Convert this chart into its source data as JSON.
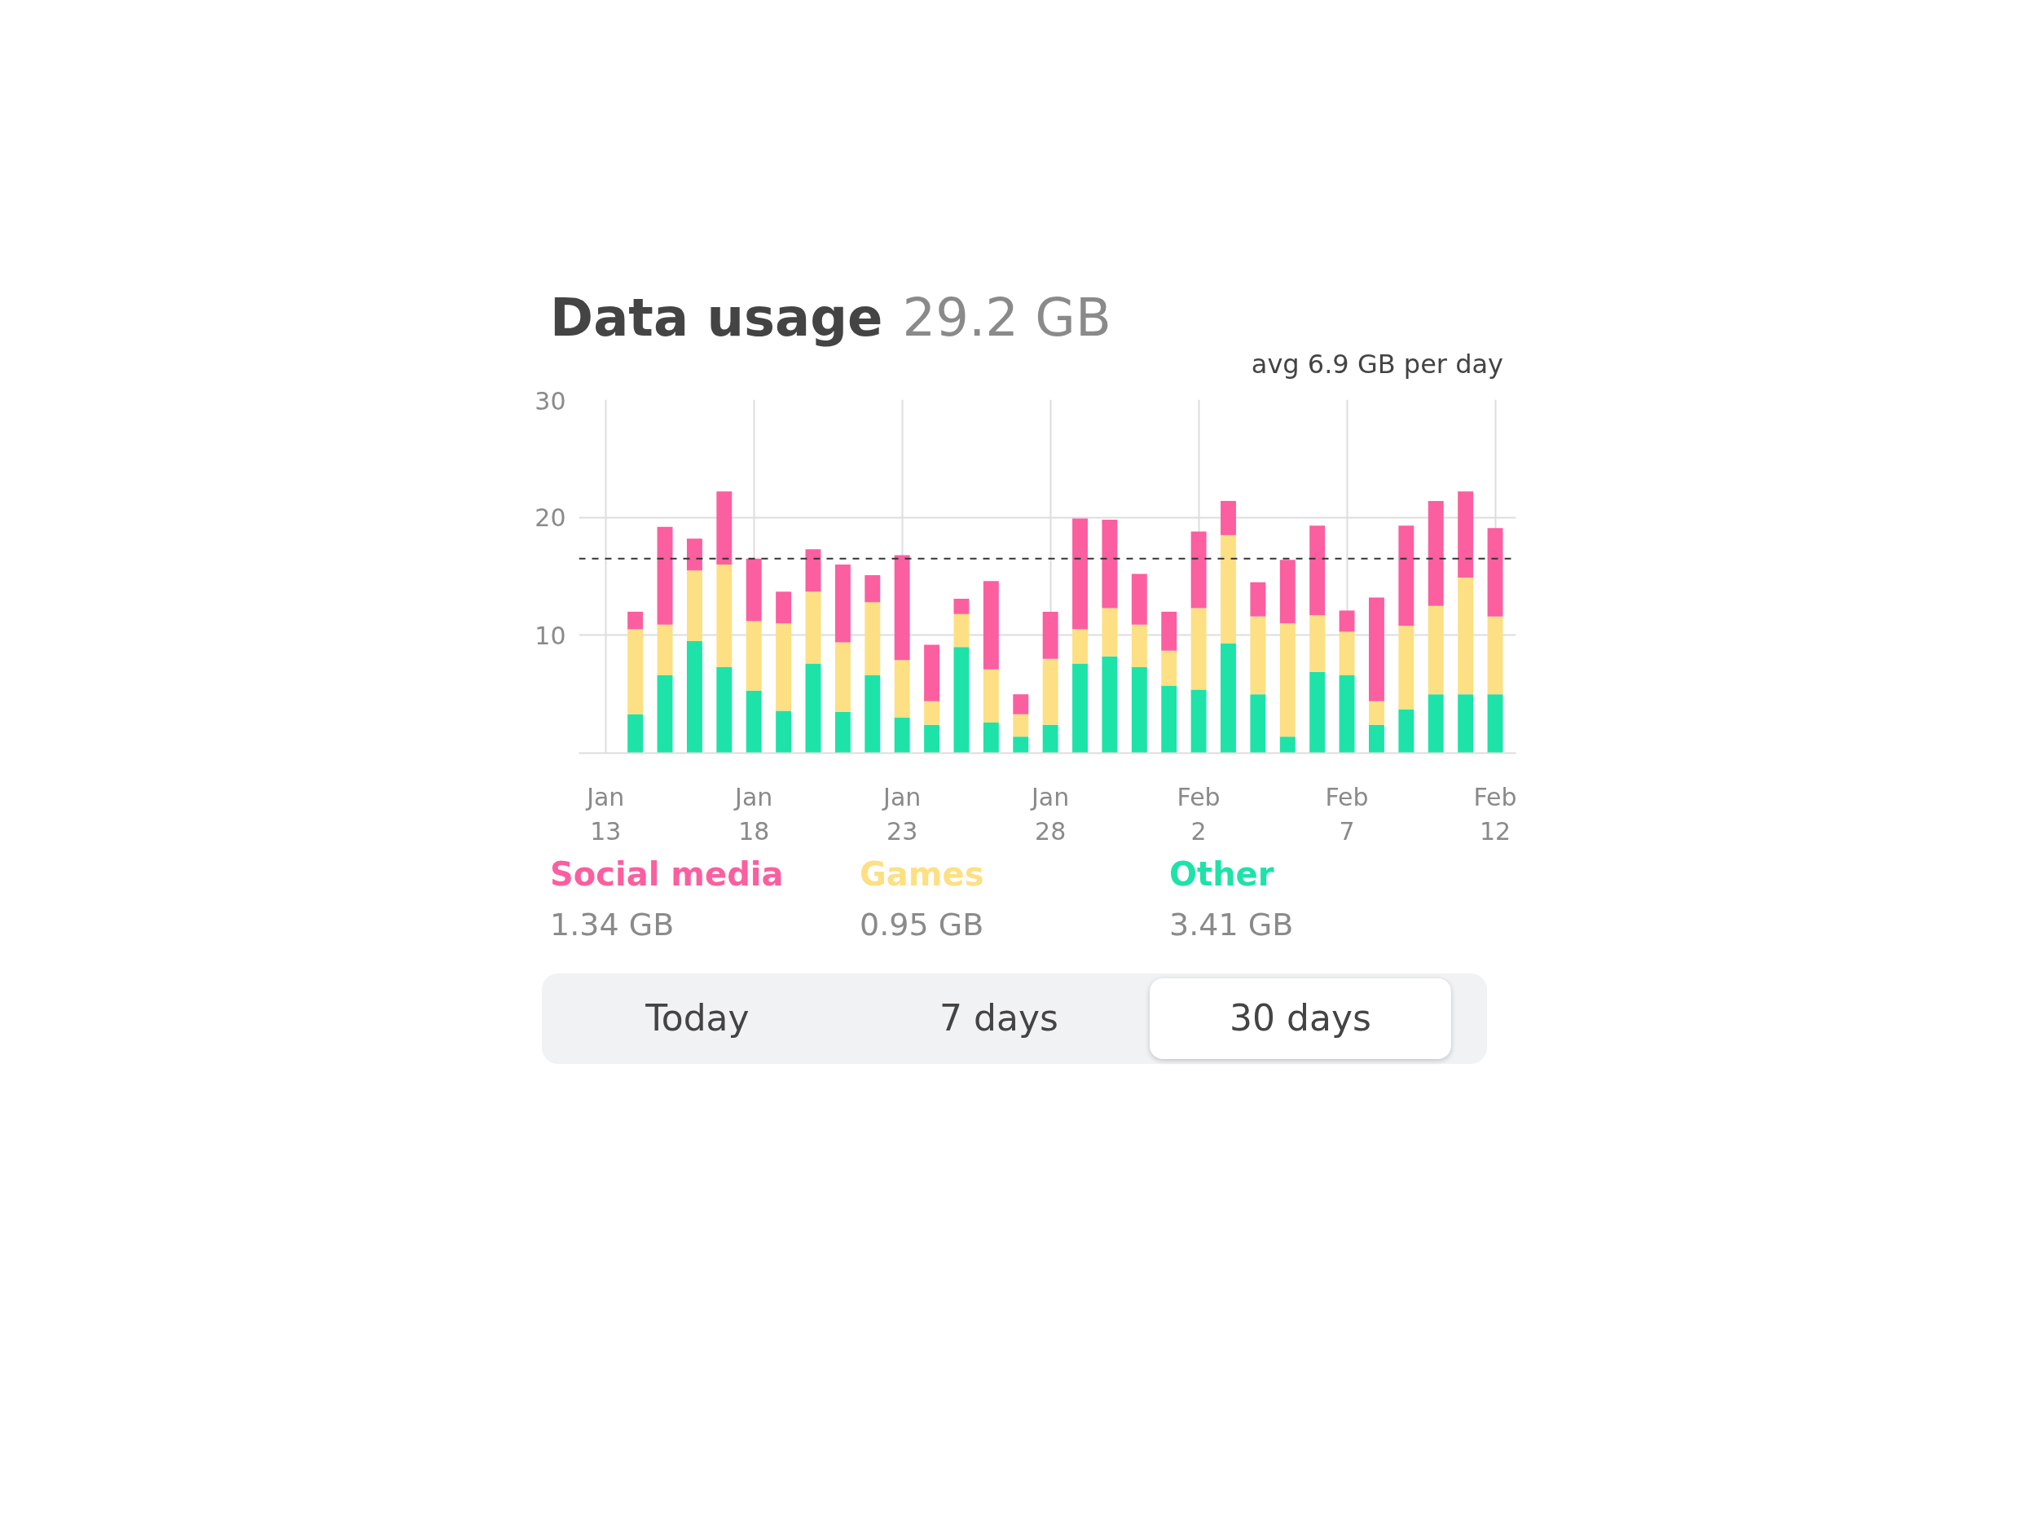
{
  "chart_data": {
    "type": "bar",
    "title": "Data usage",
    "subtitle": "29.2 GB",
    "stacked": true,
    "categories": [
      "Jan 13",
      null,
      null,
      null,
      null,
      "Jan 18",
      null,
      null,
      null,
      null,
      "Jan 23",
      null,
      null,
      null,
      null,
      "Jan 28",
      null,
      null,
      null,
      null,
      "Feb 2",
      null,
      null,
      null,
      null,
      "Feb 7",
      null,
      null,
      null,
      null,
      "Feb 12"
    ],
    "series": [
      {
        "name": "Other",
        "color": "#1de3a9",
        "values": [
          null,
          3.3,
          6.6,
          9.5,
          7.3,
          5.3,
          3.6,
          7.6,
          3.5,
          6.6,
          3.0,
          2.4,
          9.0,
          2.6,
          1.4,
          2.4,
          7.6,
          8.2,
          7.3,
          5.7,
          5.4,
          9.3,
          5.0,
          1.4,
          6.9,
          6.6,
          2.4,
          3.7,
          5.0,
          5.0,
          5.0
        ]
      },
      {
        "name": "Games",
        "color": "#fde083",
        "values": [
          null,
          7.2,
          4.3,
          6.0,
          8.7,
          5.9,
          7.4,
          6.1,
          5.9,
          6.2,
          4.9,
          2.0,
          2.8,
          4.5,
          1.9,
          5.6,
          2.9,
          4.1,
          3.6,
          3.0,
          6.9,
          9.2,
          6.6,
          9.6,
          4.8,
          3.7,
          2.0,
          7.1,
          7.5,
          9.9,
          6.6
        ]
      },
      {
        "name": "Social media",
        "color": "#fb5fa0",
        "values": [
          null,
          1.5,
          8.3,
          2.7,
          6.2,
          5.3,
          2.7,
          3.6,
          6.6,
          2.3,
          8.9,
          4.8,
          1.3,
          7.5,
          1.7,
          4.0,
          9.4,
          7.5,
          4.3,
          3.3,
          6.5,
          2.9,
          2.9,
          5.4,
          7.6,
          1.8,
          8.8,
          8.5,
          8.9,
          7.3,
          7.5
        ]
      }
    ],
    "ylim": [
      0,
      30
    ],
    "yticks": [
      10,
      20,
      30
    ],
    "grid": true,
    "legend": "bottom",
    "ref_lines": [
      {
        "axis": "y",
        "value": 16.5,
        "color": "#333333",
        "line_style": "dashed"
      }
    ],
    "annotations": [
      "avg 6.9 GB per day",
      "1.34 GB",
      "0.95 GB",
      "3.41 GB",
      "Today",
      "7 days",
      "30 days"
    ]
  }
}
